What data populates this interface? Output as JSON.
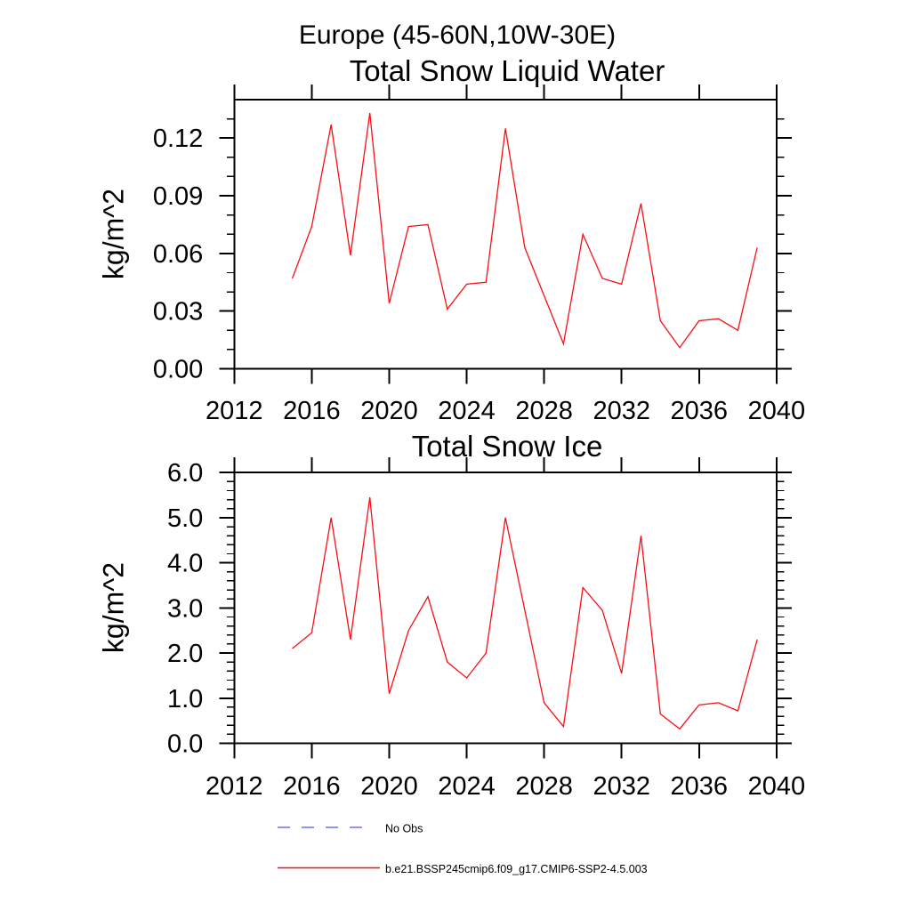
{
  "header": {
    "region_title": "Europe (45-60N,10W-30E)"
  },
  "chart_data": [
    {
      "type": "line",
      "title": "Total Snow Liquid Water",
      "ylabel": "kg/m^2",
      "xlim": [
        2012,
        2040
      ],
      "ylim": [
        0,
        0.14
      ],
      "xticks": [
        2012,
        2016,
        2020,
        2024,
        2028,
        2032,
        2036,
        2040
      ],
      "xtick_labels": [
        "2012",
        "2016",
        "2020",
        "2024",
        "2028",
        "2032",
        "2036",
        "2040"
      ],
      "yticks": [
        0,
        0.03,
        0.06,
        0.09,
        0.12
      ],
      "ytick_labels": [
        "0.00",
        "0.03",
        "0.06",
        "0.09",
        "0.12"
      ],
      "y_minor_step": 0.01,
      "grid": false,
      "x": [
        2015,
        2016,
        2017,
        2018,
        2019,
        2020,
        2021,
        2022,
        2023,
        2024,
        2025,
        2026,
        2027,
        2028,
        2029,
        2030,
        2031,
        2032,
        2033,
        2034,
        2035,
        2036,
        2037,
        2038,
        2039
      ],
      "series": [
        {
          "name": "b.e21.BSSP245cmip6.f09_g17.CMIP6-SSP2-4.5.003",
          "color": "#fb0d14",
          "values": [
            0.047,
            0.074,
            0.127,
            0.059,
            0.133,
            0.034,
            0.074,
            0.075,
            0.031,
            0.044,
            0.045,
            0.125,
            0.063,
            0.038,
            0.013,
            0.07,
            0.047,
            0.044,
            0.086,
            0.025,
            0.011,
            0.025,
            0.026,
            0.02,
            0.063
          ]
        }
      ]
    },
    {
      "type": "line",
      "title": "Total Snow Ice",
      "ylabel": "kg/m^2",
      "xlim": [
        2012,
        2040
      ],
      "ylim": [
        0,
        6
      ],
      "xticks": [
        2012,
        2016,
        2020,
        2024,
        2028,
        2032,
        2036,
        2040
      ],
      "xtick_labels": [
        "2012",
        "2016",
        "2020",
        "2024",
        "2028",
        "2032",
        "2036",
        "2040"
      ],
      "yticks": [
        0,
        1,
        2,
        3,
        4,
        5,
        6
      ],
      "ytick_labels": [
        "0.0",
        "1.0",
        "2.0",
        "3.0",
        "4.0",
        "5.0",
        "6.0"
      ],
      "y_minor_step": 0.2,
      "grid": false,
      "x": [
        2015,
        2016,
        2017,
        2018,
        2019,
        2020,
        2021,
        2022,
        2023,
        2024,
        2025,
        2026,
        2027,
        2028,
        2029,
        2030,
        2031,
        2032,
        2033,
        2034,
        2035,
        2036,
        2037,
        2038,
        2039
      ],
      "series": [
        {
          "name": "b.e21.BSSP245cmip6.f09_g17.CMIP6-SSP2-4.5.003",
          "color": "#fb0d14",
          "values": [
            2.1,
            2.45,
            5.0,
            2.3,
            5.45,
            1.1,
            2.5,
            3.25,
            1.8,
            1.45,
            2.0,
            5.0,
            2.95,
            0.9,
            0.37,
            3.45,
            2.95,
            1.55,
            4.6,
            0.65,
            0.32,
            0.85,
            0.9,
            0.72,
            2.3
          ]
        }
      ]
    }
  ],
  "legend": {
    "items": [
      {
        "label": "No Obs",
        "color": "#6f6ff1",
        "style": "dashed"
      },
      {
        "label": "b.e21.BSSP245cmip6.f09_g17.CMIP6-SSP2-4.5.003",
        "color": "#fb0d14",
        "style": "solid"
      }
    ]
  },
  "colors": {
    "axis": "#000000",
    "background": "#ffffff"
  }
}
